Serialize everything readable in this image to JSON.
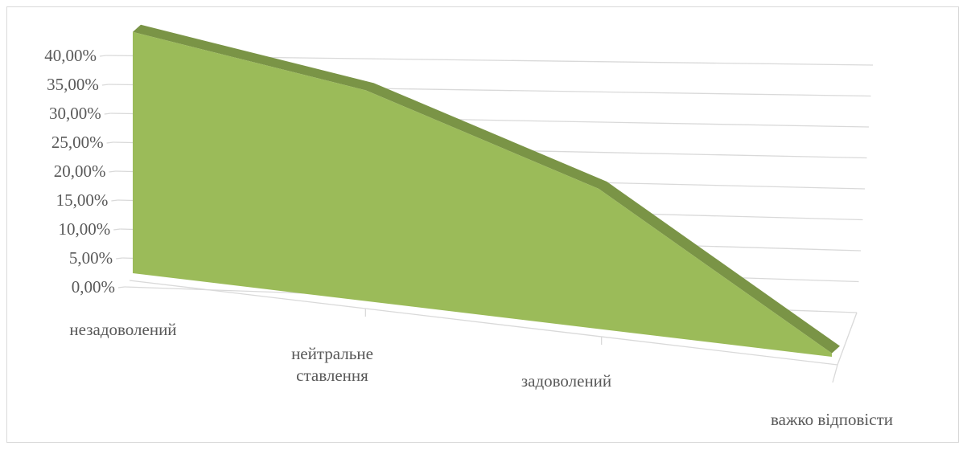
{
  "chart_data": {
    "type": "area",
    "style": "3d-area",
    "categories": [
      "незадоволений",
      "нейтральне ставлення",
      "задоволений",
      "важко відповісти"
    ],
    "category_label_lines": [
      [
        "незадоволений"
      ],
      [
        "нейтральне",
        "ставлення"
      ],
      [
        "задоволений"
      ],
      [
        "важко відповісти"
      ]
    ],
    "values": [
      39.5,
      33.0,
      21.0,
      0.5
    ],
    "ylim": [
      0,
      40
    ],
    "yticks": [
      0,
      5,
      10,
      15,
      20,
      25,
      30,
      35,
      40
    ],
    "ytick_labels": [
      "0,00%",
      "5,00%",
      "10,00%",
      "15,00%",
      "20,00%",
      "25,00%",
      "30,00%",
      "35,00%",
      "40,00%"
    ],
    "grid": true,
    "legend": "none",
    "title": "",
    "xlabel": "",
    "ylabel": "",
    "colors": {
      "face": "#9bbb59",
      "top": "#7a9446",
      "grid": "#d9d9d9",
      "axis_text": "#595959"
    }
  }
}
